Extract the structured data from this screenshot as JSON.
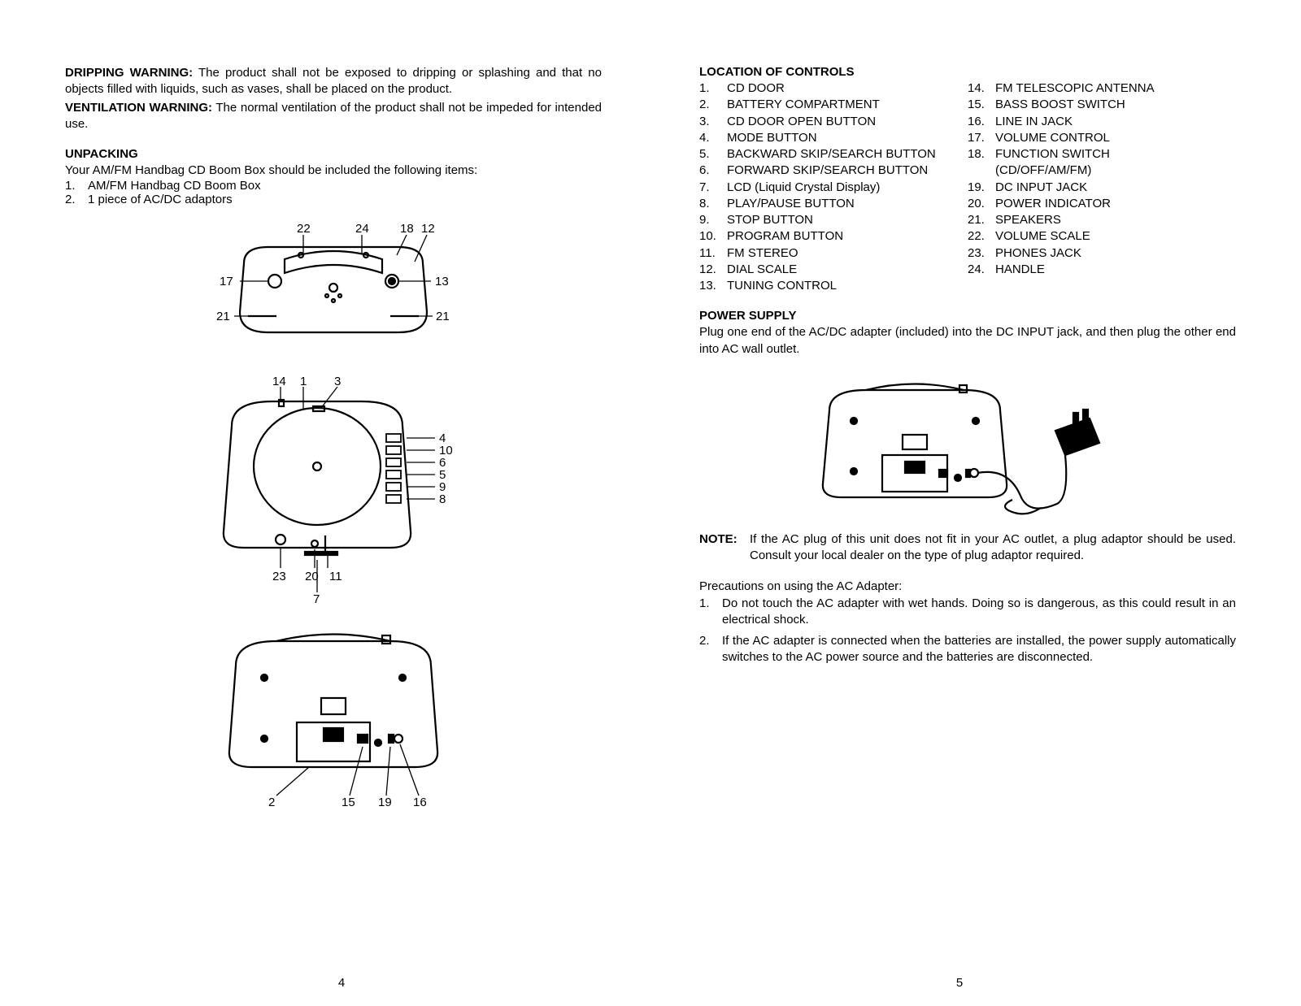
{
  "left": {
    "drip_label": "DRIPPING WARNING:",
    "drip_text": " The product shall not be exposed to dripping or splashing and that no objects filled with liquids, such as vases, shall be placed on the product.",
    "vent_label": "VENTILATION WARNING:",
    "vent_text": " The normal ventilation of the product shall not be impeded for intended use.",
    "unpacking_title": "UNPACKING",
    "unpacking_intro": "Your AM/FM Handbag CD Boom Box should be included the following items:",
    "unpack1_n": "1.",
    "unpack1": "AM/FM Handbag CD Boom Box",
    "unpack2_n": "2.",
    "unpack2": "1 piece of AC/DC adaptors",
    "top_labels": {
      "l22": "22",
      "l24": "24",
      "l18": "18",
      "l12": "12",
      "l17": "17",
      "l13": "13",
      "l21a": "21",
      "l21b": "21"
    },
    "front_labels": {
      "l14": "14",
      "l1": "1",
      "l3": "3",
      "l4": "4",
      "l10": "10",
      "l6": "6",
      "l5": "5",
      "l9": "9",
      "l8": "8",
      "l23": "23",
      "l20": "20",
      "l11": "11",
      "l7": "7"
    },
    "back_labels": {
      "l2": "2",
      "l15": "15",
      "l19": "19",
      "l16": "16"
    },
    "page_num": "4"
  },
  "right": {
    "loc_title": "LOCATION OF CONTROLS",
    "col1": [
      {
        "n": "1.",
        "t": "CD DOOR"
      },
      {
        "n": "2.",
        "t": "BATTERY COMPARTMENT"
      },
      {
        "n": "3.",
        "t": "CD DOOR OPEN BUTTON"
      },
      {
        "n": "4.",
        "t": "MODE BUTTON"
      },
      {
        "n": "5.",
        "t": "BACKWARD SKIP/SEARCH BUTTON"
      },
      {
        "n": "6.",
        "t": "FORWARD SKIP/SEARCH BUTTON"
      },
      {
        "n": "7.",
        "t": "LCD (Liquid Crystal Display)"
      },
      {
        "n": "8.",
        "t": "PLAY/PAUSE BUTTON"
      },
      {
        "n": "9.",
        "t": "STOP BUTTON"
      },
      {
        "n": "10.",
        "t": "PROGRAM BUTTON"
      },
      {
        "n": "11.",
        "t": "FM STEREO"
      },
      {
        "n": "12.",
        "t": "DIAL SCALE"
      },
      {
        "n": "13.",
        "t": "TUNING CONTROL"
      }
    ],
    "col2": [
      {
        "n": "14.",
        "t": "FM TELESCOPIC ANTENNA"
      },
      {
        "n": "15.",
        "t": "BASS BOOST SWITCH"
      },
      {
        "n": "16.",
        "t": "LINE IN JACK"
      },
      {
        "n": "17.",
        "t": "VOLUME CONTROL"
      },
      {
        "n": "18.",
        "t": "FUNCTION SWITCH"
      },
      {
        "n": "",
        "t": "(CD/OFF/AM/FM)"
      },
      {
        "n": "19.",
        "t": "DC INPUT JACK"
      },
      {
        "n": "20.",
        "t": "POWER INDICATOR"
      },
      {
        "n": "21.",
        "t": "SPEAKERS"
      },
      {
        "n": "22.",
        "t": "VOLUME SCALE"
      },
      {
        "n": "23.",
        "t": "PHONES JACK"
      },
      {
        "n": "24.",
        "t": "HANDLE"
      }
    ],
    "power_title": "POWER SUPPLY",
    "power_text": "Plug one end of the AC/DC adapter (included) into the DC INPUT jack, and then plug the other end into AC wall outlet.",
    "note_label": "NOTE:",
    "note_text": "If the AC plug of this unit does not fit in your AC outlet, a plug adaptor should be used. Consult your local dealer on the type of plug adaptor required.",
    "prec_title": "Precautions on using the AC Adapter:",
    "prec1_n": "1.",
    "prec1": "Do not touch the AC adapter with wet hands. Doing so is dangerous, as this could result in an electrical shock.",
    "prec2_n": "2.",
    "prec2": "If the AC adapter is connected when the batteries are installed, the power supply automatically switches to the AC power source and the batteries are disconnected.",
    "page_num": "5"
  }
}
